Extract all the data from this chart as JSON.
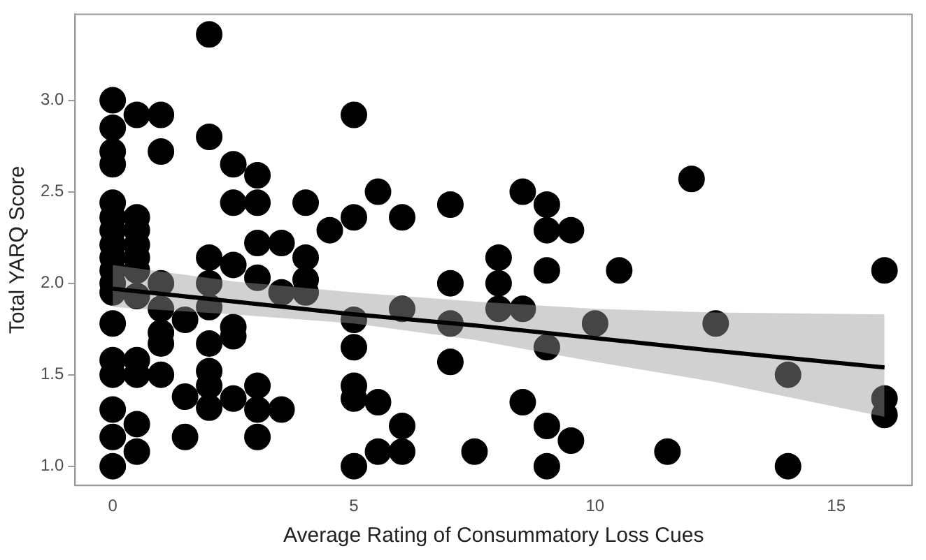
{
  "chart_data": {
    "type": "scatter",
    "xlabel": "Average Rating of Consummatory Loss Cues",
    "ylabel": "Total YARQ Score",
    "xlim": [
      -0.78,
      16.57
    ],
    "ylim": [
      0.895,
      3.47
    ],
    "xticks": [
      0,
      5,
      10,
      15
    ],
    "yticks": [
      {
        "value": 1,
        "label": "1.0"
      },
      {
        "value": 1.5,
        "label": "1.5"
      },
      {
        "value": 2,
        "label": "2.0"
      },
      {
        "value": 2.5,
        "label": "2.5"
      },
      {
        "value": 3,
        "label": "3.0"
      }
    ],
    "grid": false,
    "legend": false,
    "series": [
      {
        "marker": "circle",
        "color": "#000000",
        "x": [
          0,
          0,
          0,
          0,
          0,
          0,
          0,
          0,
          0,
          0,
          0,
          0,
          0,
          0,
          0,
          0,
          0,
          0,
          0.5,
          0.5,
          0.5,
          0.5,
          0.5,
          0.5,
          0.5,
          0.5,
          0.5,
          0.5,
          0.5,
          1,
          1,
          1,
          1,
          1,
          1,
          1,
          1.5,
          1.5,
          1.5,
          2,
          2,
          2,
          2,
          2,
          2,
          2,
          2,
          2,
          2.5,
          2.5,
          2.5,
          2.5,
          2.5,
          2.5,
          3,
          3,
          3,
          3,
          3,
          3,
          3,
          3.5,
          3.5,
          3.5,
          4,
          4,
          4,
          4,
          4.5,
          5,
          5,
          5,
          5,
          5,
          5,
          5,
          5.5,
          5.5,
          5.5,
          6,
          6,
          6,
          6,
          7,
          7,
          7,
          7,
          7.5,
          8,
          8,
          8,
          8.5,
          8.5,
          8.5,
          9,
          9,
          9,
          9,
          9,
          9,
          9.5,
          9.5,
          10,
          10.5,
          11.5,
          12,
          12.5,
          14,
          14,
          16,
          16,
          16
        ],
        "values": [
          3.0,
          2.85,
          2.72,
          2.65,
          2.44,
          2.36,
          2.29,
          2.21,
          2.14,
          2.07,
          2.0,
          1.95,
          1.78,
          1.58,
          1.5,
          1.31,
          1.16,
          1.0,
          2.92,
          2.36,
          2.29,
          2.21,
          2.14,
          2.07,
          1.93,
          1.58,
          1.5,
          1.23,
          1.08,
          2.92,
          2.72,
          2.0,
          1.86,
          1.73,
          1.67,
          1.5,
          1.8,
          1.38,
          1.16,
          3.36,
          2.8,
          2.14,
          2.0,
          1.87,
          1.67,
          1.52,
          1.44,
          1.32,
          2.65,
          2.44,
          2.1,
          1.76,
          1.71,
          1.37,
          2.59,
          2.44,
          2.22,
          2.03,
          1.44,
          1.31,
          1.16,
          2.22,
          1.95,
          1.31,
          2.44,
          2.14,
          2.02,
          1.95,
          2.29,
          2.92,
          2.36,
          1.8,
          1.65,
          1.44,
          1.37,
          1.0,
          2.5,
          1.35,
          1.08,
          2.36,
          1.86,
          1.22,
          1.08,
          2.43,
          2.0,
          1.78,
          1.57,
          1.08,
          2.14,
          2.0,
          1.86,
          2.5,
          1.86,
          1.35,
          2.43,
          2.29,
          2.07,
          1.65,
          1.22,
          1.0,
          2.29,
          1.14,
          1.78,
          2.07,
          1.08,
          2.57,
          1.78,
          1.5,
          1.0,
          2.07,
          1.37,
          1.28
        ]
      },
      {
        "type": "line",
        "marker": "none",
        "color": "#000000",
        "x": [
          0,
          2.5,
          5,
          7.5,
          10,
          12.5,
          16
        ],
        "values": [
          1.97,
          1.9,
          1.83,
          1.77,
          1.7,
          1.63,
          1.54
        ],
        "lower": [
          1.87,
          1.83,
          1.78,
          1.69,
          1.57,
          1.46,
          1.27
        ],
        "upper": [
          2.1,
          2.01,
          1.95,
          1.9,
          1.86,
          1.84,
          1.83
        ]
      }
    ]
  }
}
